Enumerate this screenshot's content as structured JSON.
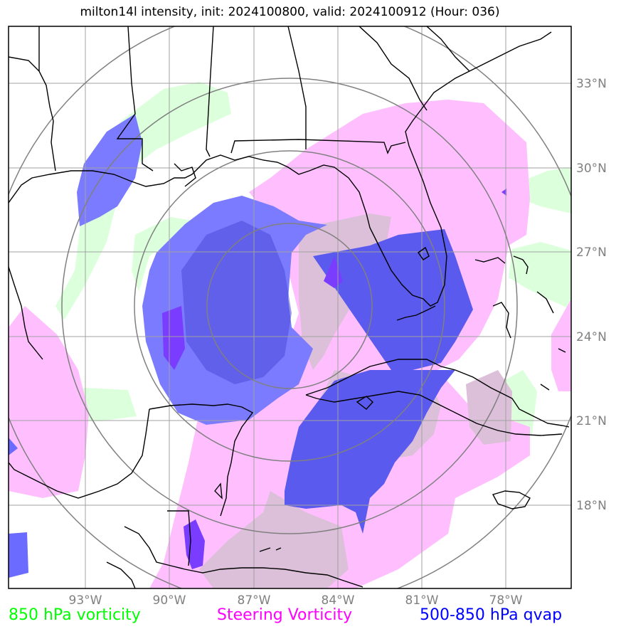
{
  "title": "milton14l intensity, init: 2024100800, valid: 2024100912 (Hour: 036)",
  "lon_ticks": [
    "93°W",
    "90°W",
    "87°W",
    "84°W",
    "81°W",
    "78°W"
  ],
  "lat_ticks": [
    "33°N",
    "30°N",
    "27°N",
    "24°N",
    "21°N",
    "18°N"
  ],
  "legend": [
    {
      "label": "850 hPa vorticity",
      "color": "#00ff00"
    },
    {
      "label": "Steering Vorticity",
      "color": "#ff00ff"
    },
    {
      "label": "500-850 hPa qvap",
      "color": "#0000ff"
    }
  ],
  "colors": {
    "vorticity_850": "#dcffdc",
    "steering_vorticity": "#ffbfff",
    "qvap": "#3f3fff",
    "grid": "#a0a0a0",
    "range_rings": "#808080",
    "coastline": "#000000"
  }
}
